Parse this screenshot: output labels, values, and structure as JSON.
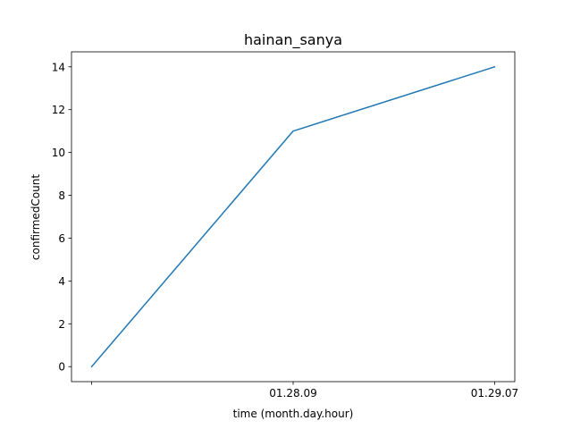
{
  "chart_data": {
    "type": "line",
    "title": "hainan_sanya",
    "xlabel": "time (month.day.hour)",
    "ylabel": "confirmedCount",
    "categories": [
      "",
      "01.28.09",
      "01.29.07"
    ],
    "series": [
      {
        "values": [
          0,
          11,
          14
        ],
        "color": "#1f77b4"
      }
    ],
    "yticks": [
      0,
      2,
      4,
      6,
      8,
      10,
      12,
      14
    ],
    "ylim": [
      -0.7,
      14.7
    ],
    "grid": false,
    "legend": "none"
  }
}
